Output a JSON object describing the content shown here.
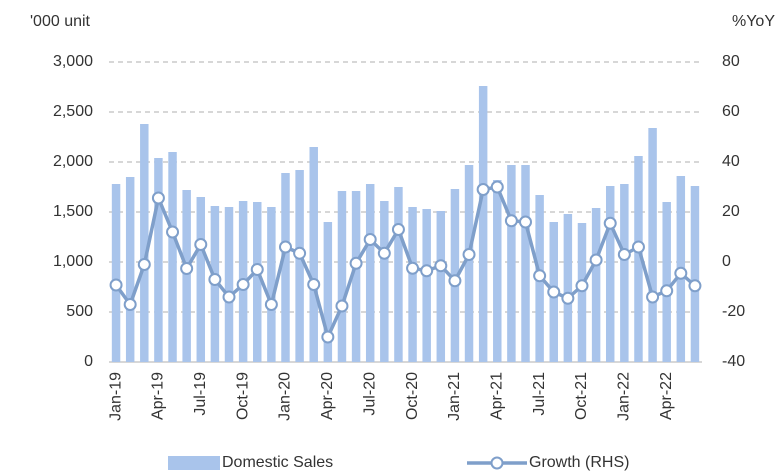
{
  "chart_data": {
    "type": "bar_line",
    "y_axis_label": "'000 unit",
    "y2_axis_label": "%YoY",
    "categories": [
      "Jan-19",
      null,
      null,
      "Apr-19",
      null,
      null,
      "Jul-19",
      null,
      null,
      "Oct-19",
      null,
      null,
      "Jan-20",
      null,
      null,
      "Apr-20",
      null,
      null,
      "Jul-20",
      null,
      null,
      "Oct-20",
      null,
      null,
      "Jan-21",
      null,
      null,
      "Apr-21",
      null,
      null,
      "Jul-21",
      null,
      null,
      "Oct-21",
      null,
      null,
      "Jan-22",
      null,
      null,
      "Apr-22",
      null,
      null
    ],
    "series": [
      {
        "name": "Domestic Sales",
        "type": "bar",
        "color": "#a9c4eb",
        "values": [
          1780,
          1850,
          2380,
          2040,
          2100,
          1720,
          1650,
          1560,
          1550,
          1610,
          1600,
          1550,
          1890,
          1920,
          2150,
          1400,
          1710,
          1710,
          1780,
          1610,
          1750,
          1550,
          1530,
          1510,
          1730,
          1970,
          2760,
          1820,
          1970,
          1970,
          1670,
          1400,
          1480,
          1390,
          1540,
          1760,
          1780,
          2060,
          2340,
          1600,
          1860,
          1760
        ]
      },
      {
        "name": "Growth (RHS)",
        "type": "line",
        "axis": "y2",
        "color": "#7f9fca",
        "values": [
          -9.2,
          -17,
          -1,
          25.6,
          12,
          -2.6,
          7,
          -7,
          -14,
          -9,
          -3,
          -17,
          6,
          3.5,
          -9,
          -30,
          -17.6,
          -0.5,
          9,
          3.5,
          13,
          -2.5,
          -3.5,
          -1.5,
          -7.5,
          3,
          29,
          30,
          16.5,
          16,
          -5.5,
          -12,
          -14.5,
          -9.5,
          0.8,
          15.5,
          3,
          6,
          -14,
          -11.5,
          -4.5,
          -9.5
        ]
      }
    ],
    "ylim": [
      0,
      3000
    ],
    "yticks": [
      0,
      500,
      {
        "value": 1000,
        "label": "1,000"
      },
      {
        "value": 1500,
        "label": "1,500"
      },
      {
        "value": 2000,
        "label": "2,000"
      },
      {
        "value": 2500,
        "label": "2,500"
      },
      {
        "value": 3000,
        "label": "3,000"
      }
    ],
    "y2lim": [
      -40,
      80
    ],
    "y2ticks": [
      -40,
      -20,
      0,
      20,
      40,
      60,
      80
    ],
    "y2_negative_tick_color": "#e00000",
    "grid": true,
    "legend": "bottom"
  }
}
